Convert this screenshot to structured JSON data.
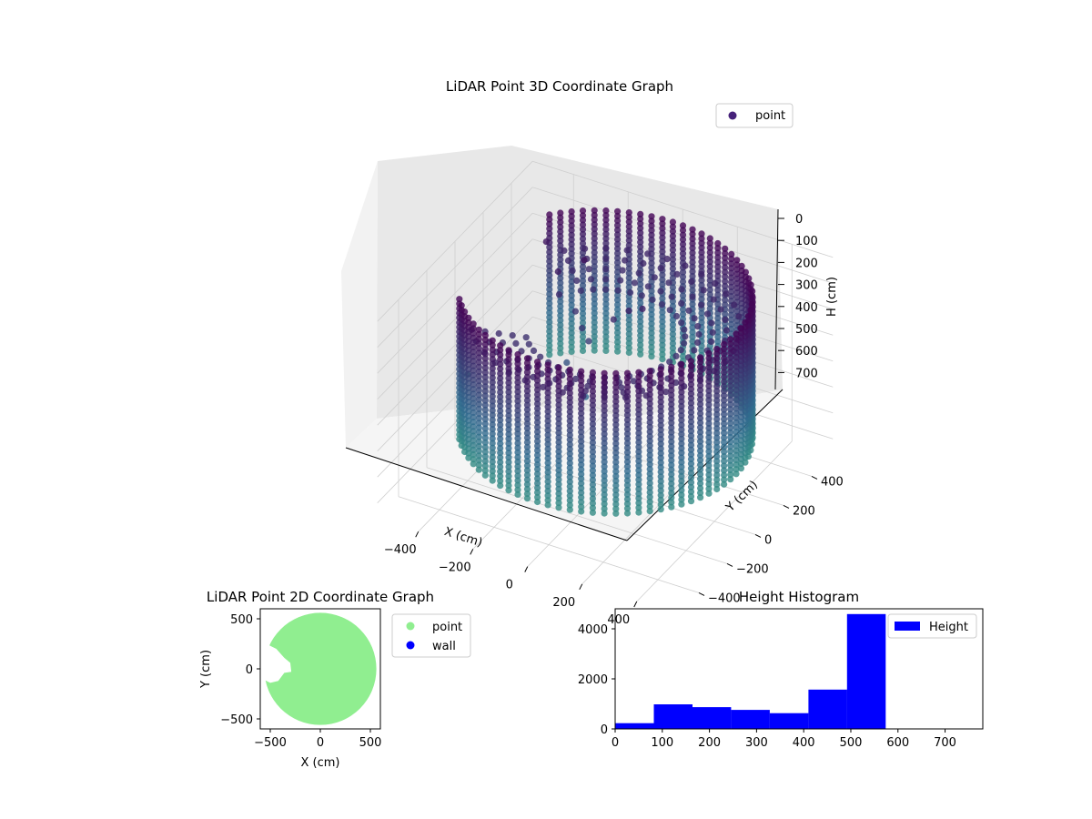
{
  "chart_data": [
    {
      "type": "scatter",
      "projection": "3d",
      "title": "LiDAR Point 3D Coordinate Graph",
      "xlabel": "X (cm)",
      "ylabel": "Y (cm)",
      "zlabel": "H (cm)",
      "z_axis_inverted": true,
      "xlim": [
        -550,
        550
      ],
      "ylim": [
        -550,
        550
      ],
      "zlim": [
        0,
        760
      ],
      "x_ticks": [
        "−400",
        "−200",
        "0",
        "200",
        "400"
      ],
      "y_ticks": [
        "−400",
        "−200",
        "0",
        "200",
        "400"
      ],
      "z_ticks": [
        "0",
        "100",
        "200",
        "300",
        "400",
        "500",
        "600",
        "700"
      ],
      "legend": {
        "entries": [
          "point"
        ],
        "placement": "top-right"
      },
      "colormap": "viridis",
      "colors": {
        "high": "#440154",
        "mid": "#31688e",
        "low": "#35b779",
        "marker": "#46227a"
      },
      "grid": true,
      "series": [
        {
          "name": "point",
          "shape": "cylinder-wall",
          "wall_radius": 480,
          "wall_height_range": [
            10,
            560
          ],
          "opening_angle_range_deg": [
            140,
            215
          ],
          "ceiling_height": 130,
          "inner_points": [
            {
              "x": -250,
              "y": 150,
              "h": 100
            },
            {
              "x": -220,
              "y": 100,
              "h": 150
            },
            {
              "x": -150,
              "y": 80,
              "h": 180
            },
            {
              "x": -100,
              "y": 30,
              "h": 200
            },
            {
              "x": -60,
              "y": 0,
              "h": 220
            },
            {
              "x": 0,
              "y": 60,
              "h": 150
            },
            {
              "x": 40,
              "y": 90,
              "h": 120
            },
            {
              "x": 80,
              "y": 110,
              "h": 110
            },
            {
              "x": -180,
              "y": 200,
              "h": 60
            },
            {
              "x": -350,
              "y": 260,
              "h": 80
            },
            {
              "x": -120,
              "y": -40,
              "h": 300
            },
            {
              "x": -30,
              "y": -80,
              "h": 380
            },
            {
              "x": -520,
              "y": 30,
              "h": 520
            }
          ]
        }
      ]
    },
    {
      "type": "scatter",
      "title": "LiDAR Point 2D Coordinate Graph",
      "xlabel": "X (cm)",
      "ylabel": "Y (cm)",
      "xlim": [
        -600,
        600
      ],
      "ylim": [
        -600,
        600
      ],
      "x_ticks": [
        "−500",
        "0",
        "500"
      ],
      "y_ticks": [
        "−500",
        "0",
        "500"
      ],
      "legend": {
        "entries": [
          "point",
          "wall"
        ],
        "placement": "outside-right"
      },
      "series": [
        {
          "name": "point",
          "color": "#90ee90",
          "shape": "filled-disc",
          "radius": 560
        },
        {
          "name": "wall",
          "color": "#0000ff",
          "values": []
        }
      ]
    },
    {
      "type": "bar",
      "subtype": "histogram",
      "title": "Height Histogram",
      "xlim": [
        0,
        780
      ],
      "ylim": [
        0,
        4800
      ],
      "x_ticks": [
        "0",
        "100",
        "200",
        "300",
        "400",
        "500",
        "600",
        "700"
      ],
      "y_ticks": [
        "0",
        "2000",
        "4000"
      ],
      "legend": {
        "entries": [
          "Height"
        ],
        "placement": "top-right"
      },
      "series": [
        {
          "name": "Height",
          "color": "#0000ff",
          "bin_edges": [
            0,
            82,
            164,
            246,
            328,
            410,
            492,
            574,
            656,
            738
          ],
          "values": [
            230,
            980,
            870,
            760,
            630,
            1570,
            4590,
            0,
            0
          ]
        }
      ]
    }
  ]
}
